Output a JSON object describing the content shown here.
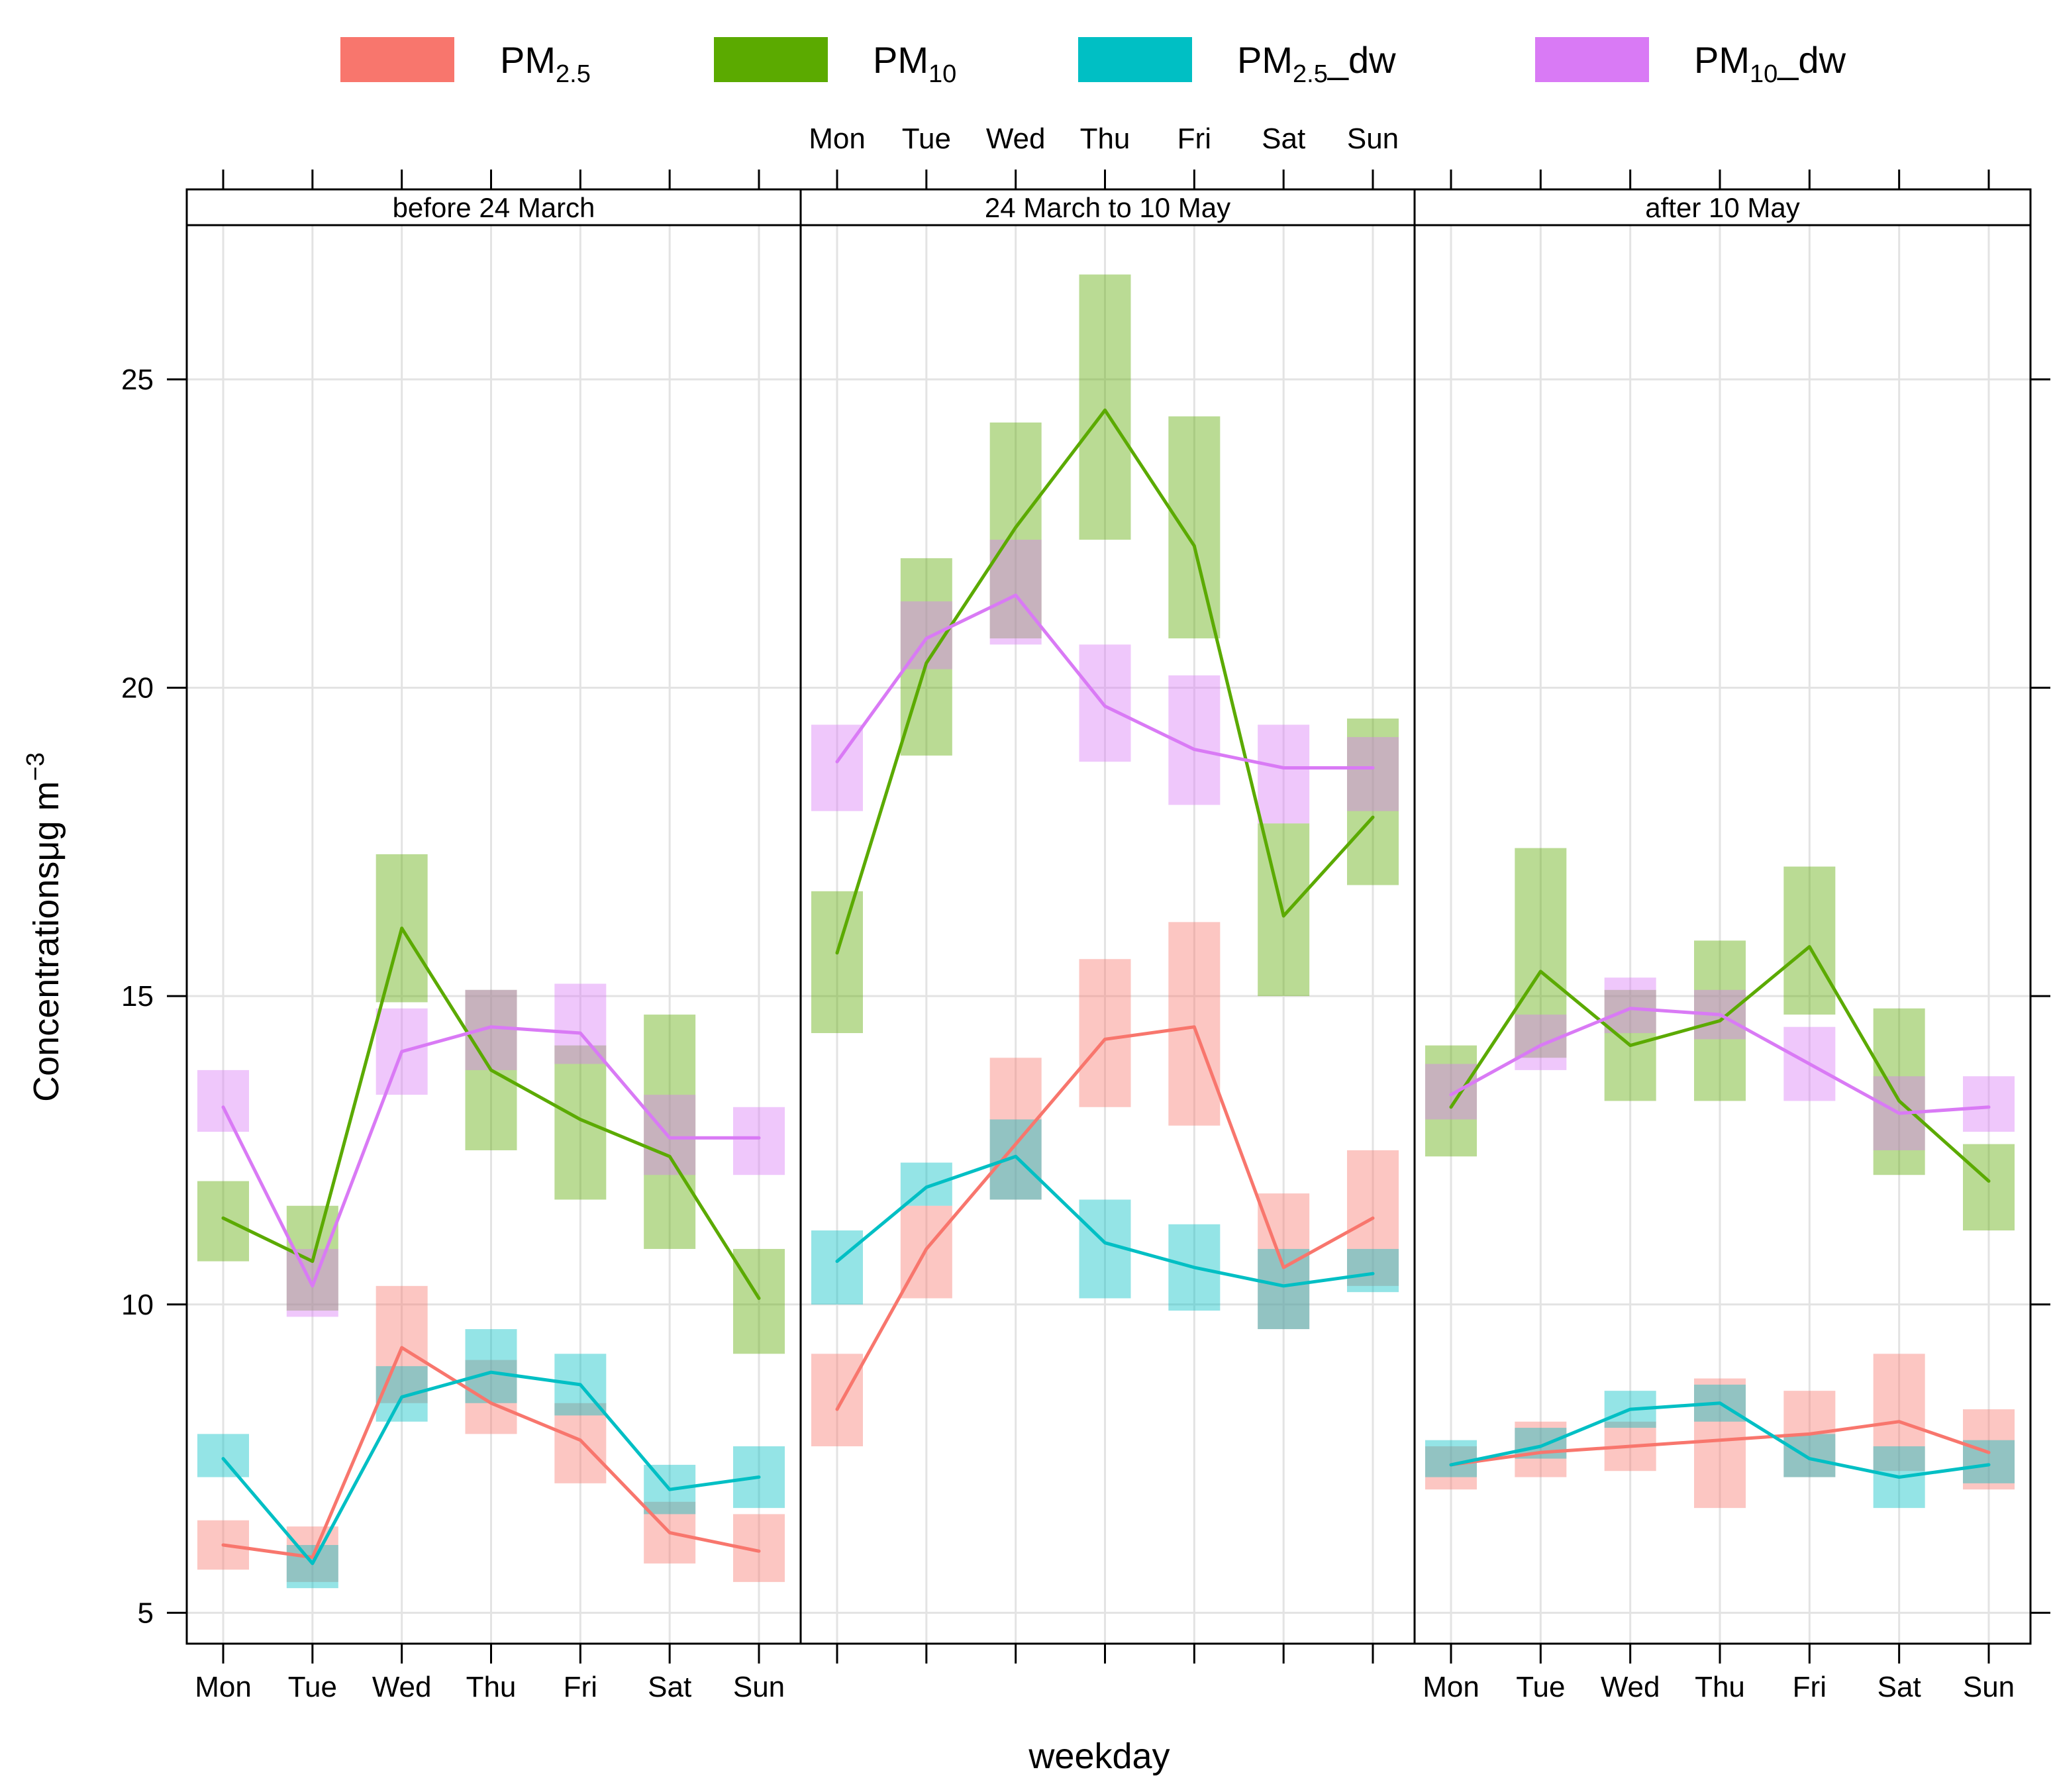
{
  "chart_data": {
    "type": "line",
    "xlabel": "weekday",
    "ylabel": "Concentrations",
    "ylabel_unit": "μg m",
    "ylabel_unit_exp": "−3",
    "ylim": [
      4.5,
      27.5
    ],
    "yticks": [
      5,
      10,
      15,
      20,
      25
    ],
    "grid": true,
    "legend_position": "top",
    "categories": [
      "Mon",
      "Tue",
      "Wed",
      "Thu",
      "Fri",
      "Sat",
      "Sun"
    ],
    "legend": [
      {
        "key": "pm25",
        "base": "PM",
        "sub": "2.5",
        "suffix": "",
        "color": "#F8766D"
      },
      {
        "key": "pm10",
        "base": "PM",
        "sub": "10",
        "suffix": "",
        "color": "#5BAA00"
      },
      {
        "key": "pm25dw",
        "base": "PM",
        "sub": "2.5",
        "suffix": "_dw",
        "color": "#00BFC4"
      },
      {
        "key": "pm10dw",
        "base": "PM",
        "sub": "10",
        "suffix": "_dw",
        "color": "#D97AF5"
      }
    ],
    "panels": [
      {
        "title": "before 24 March",
        "series": [
          {
            "key": "pm25",
            "mean": [
              6.1,
              5.9,
              9.3,
              8.4,
              7.8,
              6.3,
              6.0
            ],
            "lower": [
              5.7,
              5.5,
              8.4,
              7.9,
              7.1,
              5.8,
              5.5
            ],
            "upper": [
              6.5,
              6.4,
              10.3,
              9.1,
              8.4,
              6.8,
              6.6
            ]
          },
          {
            "key": "pm10",
            "mean": [
              11.4,
              10.7,
              16.1,
              13.8,
              13.0,
              12.4,
              10.1
            ],
            "lower": [
              10.7,
              9.9,
              14.9,
              12.5,
              11.7,
              10.9,
              9.2
            ],
            "upper": [
              12.0,
              11.6,
              17.3,
              15.1,
              14.2,
              14.7,
              10.9
            ]
          },
          {
            "key": "pm25dw",
            "mean": [
              7.5,
              5.8,
              8.5,
              8.9,
              8.7,
              7.0,
              7.2
            ],
            "lower": [
              7.2,
              5.4,
              8.1,
              8.4,
              8.2,
              6.6,
              6.7
            ],
            "upper": [
              7.9,
              6.1,
              9.0,
              9.6,
              9.2,
              7.4,
              7.7
            ]
          },
          {
            "key": "pm10dw",
            "mean": [
              13.2,
              10.3,
              14.1,
              14.5,
              14.4,
              12.7,
              12.7
            ],
            "lower": [
              12.8,
              9.8,
              13.4,
              13.8,
              13.9,
              12.1,
              12.1
            ],
            "upper": [
              13.8,
              10.9,
              14.8,
              15.1,
              15.2,
              13.4,
              13.2
            ]
          }
        ]
      },
      {
        "title": "24 March to 10 May",
        "series": [
          {
            "key": "pm25",
            "mean": [
              8.3,
              10.9,
              12.6,
              14.3,
              14.5,
              10.6,
              11.4
            ],
            "lower": [
              7.7,
              10.1,
              11.7,
              13.2,
              12.9,
              9.6,
              10.3
            ],
            "upper": [
              9.2,
              11.6,
              14.0,
              15.6,
              16.2,
              11.8,
              12.5
            ]
          },
          {
            "key": "pm10",
            "mean": [
              15.7,
              20.4,
              22.6,
              24.5,
              22.3,
              16.3,
              17.9
            ],
            "lower": [
              14.4,
              18.9,
              20.8,
              22.4,
              20.8,
              15.0,
              16.8
            ],
            "upper": [
              16.7,
              22.1,
              24.3,
              26.7,
              24.4,
              17.8,
              19.5
            ]
          },
          {
            "key": "pm25dw",
            "mean": [
              10.7,
              11.9,
              12.4,
              11.0,
              10.6,
              10.3,
              10.5
            ],
            "lower": [
              10.0,
              11.6,
              11.7,
              10.1,
              9.9,
              9.6,
              10.2
            ],
            "upper": [
              11.2,
              12.3,
              13.0,
              11.7,
              11.3,
              10.9,
              10.9
            ]
          },
          {
            "key": "pm10dw",
            "mean": [
              18.8,
              20.8,
              21.5,
              19.7,
              19.0,
              18.7,
              18.7
            ],
            "lower": [
              18.0,
              20.3,
              20.7,
              18.8,
              18.1,
              17.8,
              18.0
            ],
            "upper": [
              19.4,
              21.4,
              22.4,
              20.7,
              20.2,
              19.4,
              19.2
            ]
          }
        ]
      },
      {
        "title": "after 10 May",
        "series": [
          {
            "key": "pm25",
            "mean": [
              7.4,
              7.6,
              7.7,
              7.8,
              7.9,
              8.1,
              7.6
            ],
            "lower": [
              7.0,
              7.2,
              7.3,
              6.7,
              7.2,
              7.3,
              7.0
            ],
            "upper": [
              7.7,
              8.1,
              8.1,
              8.8,
              8.6,
              9.2,
              8.3
            ]
          },
          {
            "key": "pm10",
            "mean": [
              13.2,
              15.4,
              14.2,
              14.6,
              15.8,
              13.3,
              12.0
            ],
            "lower": [
              12.4,
              14.0,
              13.3,
              13.3,
              14.7,
              12.1,
              11.2
            ],
            "upper": [
              14.2,
              17.4,
              15.1,
              15.9,
              17.1,
              14.8,
              12.6
            ]
          },
          {
            "key": "pm25dw",
            "mean": [
              7.4,
              7.7,
              8.3,
              8.4,
              7.5,
              7.2,
              7.4
            ],
            "lower": [
              7.2,
              7.5,
              8.0,
              8.1,
              7.2,
              6.7,
              7.1
            ],
            "upper": [
              7.8,
              8.0,
              8.6,
              8.7,
              7.9,
              7.7,
              7.8
            ]
          },
          {
            "key": "pm10dw",
            "mean": [
              13.4,
              14.2,
              14.8,
              14.7,
              13.9,
              13.1,
              13.2
            ],
            "lower": [
              13.0,
              13.8,
              14.4,
              14.3,
              13.3,
              12.5,
              12.8
            ],
            "upper": [
              13.9,
              14.7,
              15.3,
              15.1,
              14.5,
              13.7,
              13.7
            ]
          }
        ]
      }
    ]
  }
}
